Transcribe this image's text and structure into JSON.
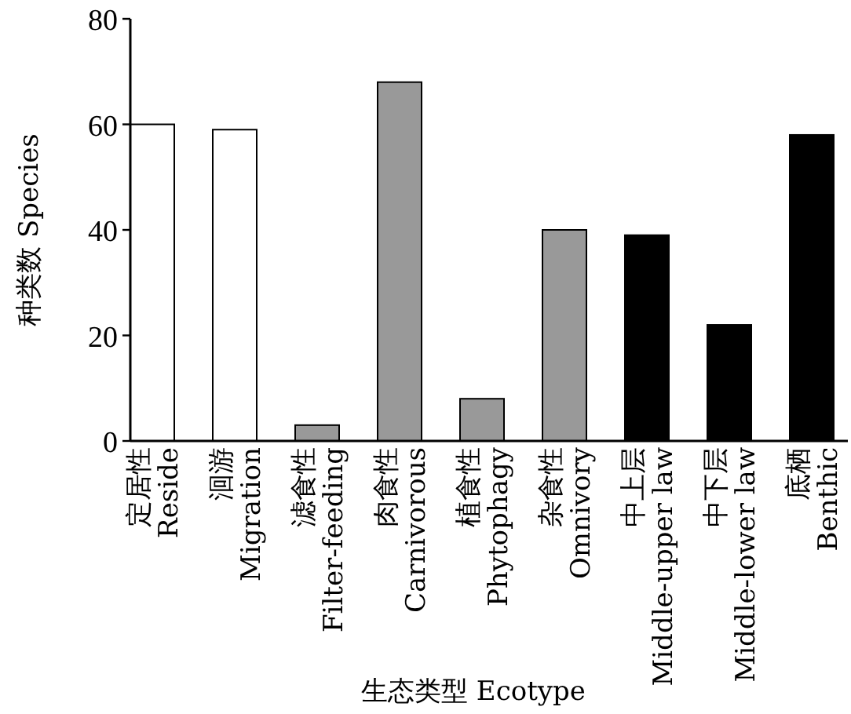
{
  "chart_data": {
    "type": "bar",
    "xlabel": "生态类型 Ecotype",
    "ylabel": "种类数 Species",
    "categories": [
      "定居性 Reside",
      "洄游 Migration",
      "滤食性 Filter-feeding",
      "肉食性 Carnivorous",
      "植食性 Phytophagy",
      "杂食性 Omnivory",
      "中上层 Middle-upper law",
      "中下层 Middle-lower law",
      "底栖 Benthic"
    ],
    "values": [
      60,
      59,
      3,
      68,
      8,
      40,
      39,
      22,
      58
    ],
    "colors": [
      "#ffffff",
      "#ffffff",
      "#999999",
      "#999999",
      "#999999",
      "#999999",
      "#000000",
      "#000000",
      "#000000"
    ],
    "ylim": [
      0,
      80
    ],
    "yticks": [
      0,
      20,
      40,
      60,
      80
    ]
  }
}
